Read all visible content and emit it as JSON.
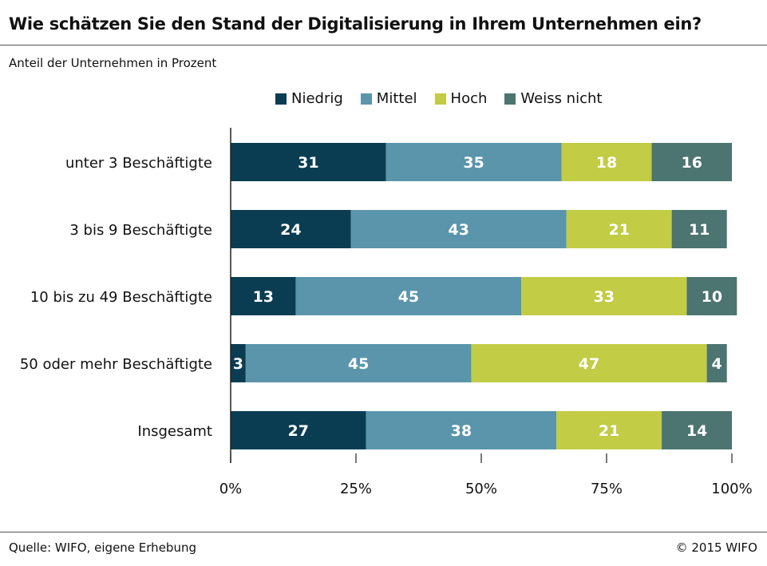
{
  "title": "Wie schätzen Sie den Stand der Digitalisierung in Ihrem Unternehmen ein?",
  "subtitle": "Anteil der Unternehmen in Prozent",
  "source": "Quelle: WIFO, eigene Erhebung",
  "copyright": "© 2015 WIFO",
  "chart_data": {
    "type": "bar",
    "orientation": "horizontal",
    "stacked": true,
    "legend_position": "top",
    "grid": false,
    "categories": [
      "unter 3 Beschäftigte",
      "3 bis 9 Beschäftigte",
      "10 bis zu 49 Beschäftigte",
      "50 oder mehr Beschäftigte",
      "Insgesamt"
    ],
    "series": [
      {
        "name": "Niedrig",
        "color": "#0b3d52",
        "values": [
          31,
          24,
          13,
          3,
          27
        ]
      },
      {
        "name": "Mittel",
        "color": "#5a95ab",
        "values": [
          35,
          43,
          45,
          45,
          38
        ]
      },
      {
        "name": "Hoch",
        "color": "#c2cc44",
        "values": [
          18,
          21,
          33,
          47,
          21
        ]
      },
      {
        "name": "Weiss nicht",
        "color": "#4c7470",
        "values": [
          16,
          11,
          10,
          4,
          14
        ]
      }
    ],
    "x_ticks": [
      "0%",
      "25%",
      "50%",
      "75%",
      "100%"
    ],
    "xlim": [
      0,
      100
    ]
  }
}
